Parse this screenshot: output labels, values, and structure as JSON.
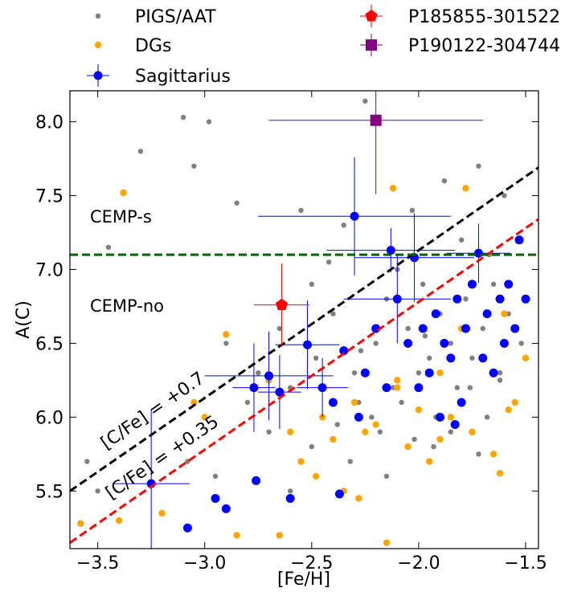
{
  "chart_data": {
    "type": "scatter",
    "x_label": "[Fe/H]",
    "y_label": "A(C)",
    "xlim": [
      -3.63,
      -1.44
    ],
    "ylim": [
      5.11,
      8.21
    ],
    "xticks": [
      {
        "value": -3.5,
        "label": "−3.5"
      },
      {
        "value": -3.0,
        "label": "−3.0"
      },
      {
        "value": -2.5,
        "label": "−2.5"
      },
      {
        "value": -2.0,
        "label": "−2.0"
      },
      {
        "value": -1.5,
        "label": "−1.5"
      }
    ],
    "yticks": [
      5.5,
      {
        "value": 6.0,
        "label": "6.0"
      },
      6.5,
      {
        "value": 7.0,
        "label": "7.0"
      },
      7.5,
      {
        "value": 8.0,
        "label": "8.0"
      }
    ],
    "series": [
      {
        "name": "PIGS/AAT",
        "color": "#808080",
        "marker": "dot",
        "x": [
          -3.55,
          -3.45,
          -3.3,
          -3.1,
          -3.05,
          -2.98,
          -2.9,
          -2.85,
          -2.8,
          -2.75,
          -2.7,
          -2.65,
          -2.6,
          -2.55,
          -2.5,
          -2.48,
          -2.45,
          -2.4,
          -2.38,
          -2.35,
          -2.3,
          -2.28,
          -2.25,
          -2.2,
          -2.18,
          -2.15,
          -2.12,
          -2.1,
          -2.08,
          -2.05,
          -2.02,
          -2.0,
          -1.98,
          -1.95,
          -1.92,
          -1.9,
          -1.88,
          -1.85,
          -1.82,
          -1.8,
          -1.78,
          -1.75,
          -1.72,
          -1.7,
          -1.68,
          -1.65,
          -1.62,
          -1.6,
          -1.58,
          -1.55,
          -1.52,
          -1.5,
          -2.22,
          -2.32,
          -1.93,
          -1.76,
          -2.6,
          -2.95,
          -3.08,
          -2.42,
          -2.03,
          -1.67,
          -1.85,
          -2.15,
          -2.5,
          -1.72,
          -1.97,
          -2.27,
          -1.62,
          -3.5
        ],
        "y": [
          5.7,
          7.15,
          7.8,
          8.03,
          7.7,
          8.0,
          6.5,
          7.45,
          6.1,
          6.3,
          5.9,
          6.6,
          6.2,
          7.4,
          5.8,
          6.4,
          6.0,
          6.7,
          5.95,
          7.3,
          6.3,
          6.1,
          8.14,
          6.5,
          5.9,
          6.8,
          6.2,
          7.0,
          6.1,
          6.6,
          5.85,
          6.3,
          6.9,
          6.4,
          6.0,
          6.7,
          7.6,
          6.5,
          6.2,
          7.2,
          6.8,
          6.4,
          7.7,
          6.6,
          6.0,
          6.9,
          6.3,
          7.5,
          6.7,
          6.1,
          6.5,
          6.8,
          6.0,
          5.7,
          5.8,
          6.2,
          5.5,
          5.6,
          5.7,
          7.05,
          7.4,
          7.1,
          5.9,
          5.6,
          6.9,
          5.75,
          6.55,
          6.45,
          6.25,
          5.5
        ]
      },
      {
        "name": "DGs",
        "color": "#ffa500",
        "marker": "dot",
        "x": [
          -3.58,
          -3.4,
          -3.38,
          -3.2,
          -3.05,
          -2.9,
          -2.85,
          -2.7,
          -2.6,
          -2.55,
          -2.45,
          -2.4,
          -2.35,
          -2.3,
          -2.25,
          -2.2,
          -2.15,
          -2.1,
          -2.05,
          -2.0,
          -1.95,
          -1.9,
          -1.85,
          -1.8,
          -1.75,
          -1.7,
          -1.65,
          -1.6,
          -1.55,
          -1.5,
          -2.12,
          -2.1,
          -1.78,
          -1.58,
          -2.48,
          -2.28,
          -1.9,
          -1.62,
          -2.65,
          -3.0
        ],
        "y": [
          5.28,
          5.3,
          7.52,
          5.35,
          6.1,
          6.56,
          5.2,
          6.25,
          5.9,
          5.7,
          6.0,
          5.85,
          5.5,
          6.1,
          5.9,
          5.95,
          5.15,
          6.2,
          5.8,
          6.05,
          5.7,
          6.3,
          6.0,
          6.6,
          5.9,
          6.4,
          5.75,
          6.7,
          6.1,
          6.4,
          7.55,
          6.25,
          7.55,
          6.05,
          5.6,
          5.45,
          5.85,
          5.62,
          5.2,
          6.0
        ]
      },
      {
        "name": "Sagittarius",
        "color": "#0000ff",
        "marker": "dot",
        "x": [
          -3.25,
          -3.08,
          -2.95,
          -2.9,
          -2.77,
          -2.76,
          -2.7,
          -2.65,
          -2.6,
          -2.52,
          -2.45,
          -2.37,
          -2.35,
          -2.3,
          -2.28,
          -2.25,
          -2.2,
          -2.15,
          -2.13,
          -2.1,
          -2.05,
          -2.02,
          -2.0,
          -1.98,
          -1.95,
          -1.92,
          -1.9,
          -1.88,
          -1.85,
          -1.82,
          -1.8,
          -1.78,
          -1.75,
          -1.72,
          -1.7,
          -1.68,
          -1.65,
          -1.62,
          -1.6,
          -1.58,
          -1.55,
          -1.53,
          -1.5,
          -2.4,
          -1.83
        ],
        "y": [
          5.55,
          5.25,
          5.45,
          5.38,
          6.2,
          5.57,
          6.28,
          6.17,
          5.45,
          6.49,
          6.2,
          5.48,
          6.45,
          7.36,
          6.0,
          6.3,
          6.6,
          6.2,
          7.13,
          6.8,
          6.5,
          7.08,
          6.2,
          6.6,
          6.3,
          6.7,
          6.0,
          6.5,
          6.4,
          6.8,
          6.1,
          6.6,
          6.9,
          7.11,
          6.4,
          6.7,
          6.3,
          6.8,
          6.5,
          6.9,
          6.6,
          7.2,
          6.8,
          6.1,
          5.95
        ],
        "xerr": [
          0.18,
          null,
          null,
          null,
          0.1,
          null,
          0.3,
          0.1,
          null,
          0.15,
          0.12,
          null,
          null,
          0.45,
          null,
          null,
          null,
          null,
          0.3,
          0.25,
          null,
          0.28,
          null,
          null,
          null,
          null,
          null,
          null,
          null,
          null,
          null,
          null,
          null,
          0.15,
          null,
          null,
          null,
          null,
          null,
          null,
          null,
          null,
          null,
          null,
          null
        ],
        "yerr": [
          0.5,
          null,
          null,
          null,
          0.3,
          null,
          0.3,
          0.25,
          null,
          0.3,
          0.2,
          null,
          null,
          0.4,
          null,
          null,
          null,
          null,
          0.15,
          0.3,
          null,
          0.3,
          null,
          null,
          null,
          null,
          null,
          null,
          null,
          null,
          null,
          null,
          null,
          0.2,
          null,
          null,
          null,
          null,
          null,
          null,
          null,
          null,
          null,
          null,
          null
        ]
      },
      {
        "name": "P185855-301522",
        "color": "#ff0000",
        "marker": "pentagon",
        "x": [
          -2.64
        ],
        "y": [
          6.76
        ],
        "xerr": [
          0.13
        ],
        "yerr": [
          0.28
        ]
      },
      {
        "name": "P190122-304744",
        "color": "#800080",
        "marker": "square",
        "x": [
          -2.2
        ],
        "y": [
          8.01
        ],
        "xerr": [
          0.5
        ],
        "yerr": [
          0.5
        ]
      }
    ],
    "reference_lines": [
      {
        "label": "[C/Fe] = +0.7",
        "color": "#000000",
        "x": [
          -3.63,
          -1.44
        ],
        "y": [
          5.5,
          7.69
        ]
      },
      {
        "label": "[C/Fe] = +0.35",
        "color": "#ff0000",
        "x": [
          -3.63,
          -1.44
        ],
        "y": [
          5.15,
          7.34
        ]
      },
      {
        "color": "#006400",
        "x": [
          -3.63,
          -1.44
        ],
        "y": [
          7.1,
          7.1
        ]
      }
    ],
    "annotations": [
      "CEMP-s",
      "CEMP-no"
    ]
  }
}
